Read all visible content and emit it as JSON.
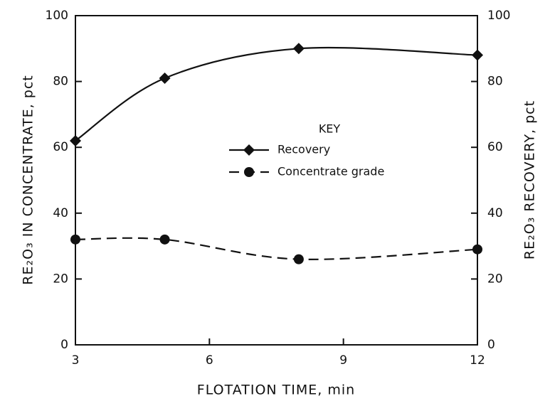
{
  "chart_data": {
    "type": "line",
    "xlabel": "FLOTATION TIME, min",
    "ylabel": "RE₂O₃ IN CONCENTRATE, pct",
    "y2label": "RE₂O₃ RECOVERY, pct",
    "legend_title": "KEY",
    "x": [
      3,
      5,
      8,
      12
    ],
    "series": [
      {
        "name": "Recovery",
        "color": "#111111",
        "axis": "y2",
        "dash": "solid",
        "marker": "diamond",
        "values": [
          62,
          81,
          90,
          88
        ]
      },
      {
        "name": "Concentrate grade",
        "color": "#111111",
        "axis": "y",
        "dash": "dashed",
        "marker": "circle",
        "values": [
          32,
          32,
          26,
          29
        ]
      }
    ],
    "xlim": [
      3,
      12
    ],
    "xticks": [
      3,
      6,
      9,
      12
    ],
    "ylim": [
      0,
      100
    ],
    "yticks": [
      0,
      20,
      40,
      60,
      80,
      100
    ],
    "y2lim": [
      0,
      100
    ],
    "y2ticks": [
      0,
      20,
      40,
      60,
      80,
      100
    ],
    "grid": false,
    "legend": "center"
  }
}
